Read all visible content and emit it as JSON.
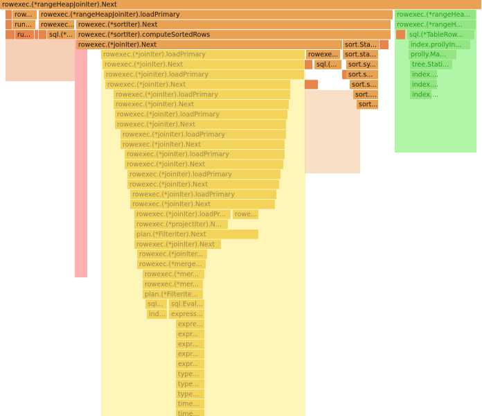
{
  "frames": [
    {
      "label": "rowexec.(*rangeHeapJoinIter).Next"
    },
    {
      "label": "row..."
    },
    {
      "label": "rowexec.(*rangeHeapJoinIter).loadPrimary"
    },
    {
      "label": "rowexec.(*rangeHea..."
    },
    {
      "label": "run..."
    },
    {
      "label": "rowexec..."
    },
    {
      "label": "rowexec.(*sortIter).Next"
    },
    {
      "label": "rowexec.(*rangeH..."
    },
    {
      "label": "ru..."
    },
    {
      "label": "sql.(*..."
    },
    {
      "label": "rowexec.(*sortIter).computeSortedRows"
    },
    {
      "label": "sql.(*TableRow..."
    },
    {
      "label": "rowexec.(*joinIter).Next"
    },
    {
      "label": "sort.Sta..."
    },
    {
      "label": "index.prollyIn..."
    },
    {
      "label": "rowexec.(*joinIter).loadPrimary"
    },
    {
      "label": "rowexe..."
    },
    {
      "label": "sort.sta..."
    },
    {
      "label": "prolly.Ma..."
    },
    {
      "label": "rowexec.(*joinIter).Next"
    },
    {
      "label": "sql.(..."
    },
    {
      "label": "sort.sy..."
    },
    {
      "label": "tree.Stati..."
    },
    {
      "label": "rowexec.(*joinIter).loadPrimary"
    },
    {
      "label": "sort.s..."
    },
    {
      "label": "index...."
    },
    {
      "label": "rowexec.(*joinIter).Next"
    },
    {
      "label": "sort.s..."
    },
    {
      "label": "index...."
    },
    {
      "label": "rowexec.(*joinIter).loadPrimary"
    },
    {
      "label": "sort...."
    },
    {
      "label": "index...."
    },
    {
      "label": "rowexec.(*joinIter).Next"
    },
    {
      "label": "sort..."
    },
    {
      "label": "rowexec.(*joinIter).loadPrimary"
    },
    {
      "label": "rowexec.(*joinIter).Next"
    },
    {
      "label": "rowexec.(*joinIter).loadPrimary"
    },
    {
      "label": "rowexec.(*joinIter).Next"
    },
    {
      "label": "rowexec.(*joinIter).loadPrimary"
    },
    {
      "label": "rowexec.(*joinIter).Next"
    },
    {
      "label": "rowexec.(*joinIter).loadPrimary"
    },
    {
      "label": "rowexec.(*joinIter).Next"
    },
    {
      "label": "rowexec.(*joinIter).loadPrimary"
    },
    {
      "label": "rowexec.(*joinIter).Next"
    },
    {
      "label": "rowexec.(*joinIter).loadPr..."
    },
    {
      "label": "rowe..."
    },
    {
      "label": "rowexec.(*projectIter).N..."
    },
    {
      "label": "plan.(*FilterIter).Next"
    },
    {
      "label": "rowexec.(*joinIter).Next"
    },
    {
      "label": "rowexec.(*joinIter..."
    },
    {
      "label": "rowexec.(*merge..."
    },
    {
      "label": "rowexec.(*mer..."
    },
    {
      "label": "rowexec.(*mer..."
    },
    {
      "label": "plan.(*FilterIte..."
    },
    {
      "label": "sql..."
    },
    {
      "label": "sql.Eval..."
    },
    {
      "label": "ind..."
    },
    {
      "label": "express..."
    },
    {
      "label": "expre..."
    },
    {
      "label": "expr..."
    },
    {
      "label": "expr..."
    },
    {
      "label": "expr..."
    },
    {
      "label": "expr..."
    },
    {
      "label": "type..."
    },
    {
      "label": "type..."
    },
    {
      "label": "type..."
    },
    {
      "label": "time..."
    },
    {
      "label": "time..."
    }
  ]
}
